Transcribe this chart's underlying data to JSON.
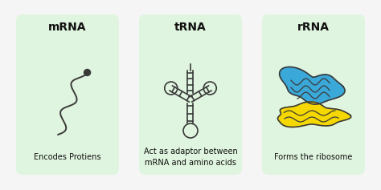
{
  "background_color": "#f5f5f5",
  "cards": [
    {
      "title": "mRNA",
      "description": "Encodes Protiens",
      "type": "mrna"
    },
    {
      "title": "tRNA",
      "description": "Act as adaptor between\nmRNA and amino acids",
      "type": "trna"
    },
    {
      "title": "rRNA",
      "description": "Forms the ribosome",
      "type": "rrna"
    }
  ],
  "title_fontsize": 10,
  "desc_fontsize": 7,
  "card_color": "#dff5df",
  "line_color": "#3a3a3a",
  "blue_color": "#3aa8d8",
  "yellow_color": "#f5d800"
}
